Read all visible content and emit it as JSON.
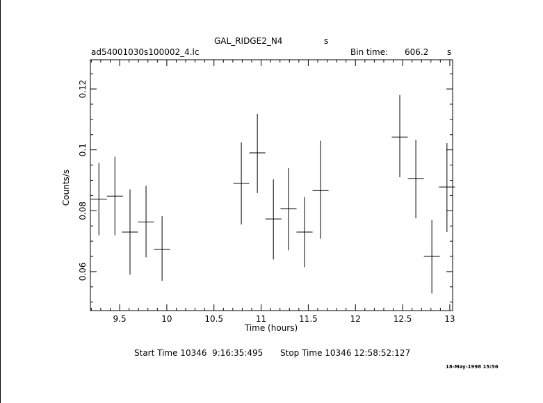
{
  "header": {
    "source": "GAL_RIDGE2_N4",
    "source_suffix": "s",
    "file": "ad54001030s100002_4.lc",
    "bin_label": "Bin time:",
    "bin_value": "606.2",
    "bin_unit": "s"
  },
  "footer": {
    "start": "Start Time 10346  9:16:35:495",
    "stop": "Stop Time 10346 12:58:52:127",
    "date_stamp": "18-May-1998 15:56"
  },
  "chart_data": {
    "type": "scatter",
    "title": "GAL_RIDGE2_N4",
    "xlabel": "Time (hours)",
    "ylabel": "Counts/s",
    "xlim": [
      9.19,
      13.03
    ],
    "ylim": [
      0.0472,
      0.1296
    ],
    "xticks_major": [
      9.5,
      10,
      10.5,
      11,
      11.5,
      12,
      12.5,
      13
    ],
    "xtick_labels": [
      "9.5",
      "10",
      "10.5",
      "11",
      "11.5",
      "12",
      "12.5",
      "13"
    ],
    "yticks_major": [
      0.06,
      0.08,
      0.1,
      0.12
    ],
    "ytick_labels": [
      "0.06",
      "0.08",
      "0.1",
      "0.12"
    ],
    "grid": false,
    "points": [
      {
        "x": 9.28,
        "y": 0.0838,
        "xerr": 0.085,
        "ylo": 0.072,
        "yhi": 0.0957
      },
      {
        "x": 9.45,
        "y": 0.0848,
        "xerr": 0.085,
        "ylo": 0.072,
        "yhi": 0.0977
      },
      {
        "x": 9.61,
        "y": 0.073,
        "xerr": 0.085,
        "ylo": 0.059,
        "yhi": 0.087
      },
      {
        "x": 9.78,
        "y": 0.0763,
        "xerr": 0.085,
        "ylo": 0.0647,
        "yhi": 0.0882
      },
      {
        "x": 9.95,
        "y": 0.0673,
        "xerr": 0.085,
        "ylo": 0.057,
        "yhi": 0.0782
      },
      {
        "x": 10.79,
        "y": 0.089,
        "xerr": 0.085,
        "ylo": 0.0755,
        "yhi": 0.1025
      },
      {
        "x": 10.96,
        "y": 0.099,
        "xerr": 0.085,
        "ylo": 0.0858,
        "yhi": 0.1118
      },
      {
        "x": 11.13,
        "y": 0.0773,
        "xerr": 0.085,
        "ylo": 0.064,
        "yhi": 0.0903
      },
      {
        "x": 11.29,
        "y": 0.0806,
        "xerr": 0.085,
        "ylo": 0.067,
        "yhi": 0.094
      },
      {
        "x": 11.46,
        "y": 0.073,
        "xerr": 0.085,
        "ylo": 0.0615,
        "yhi": 0.0845
      },
      {
        "x": 11.63,
        "y": 0.0866,
        "xerr": 0.085,
        "ylo": 0.0708,
        "yhi": 0.103
      },
      {
        "x": 12.47,
        "y": 0.1042,
        "xerr": 0.085,
        "ylo": 0.091,
        "yhi": 0.118
      },
      {
        "x": 12.64,
        "y": 0.0906,
        "xerr": 0.085,
        "ylo": 0.0775,
        "yhi": 0.1033
      },
      {
        "x": 12.81,
        "y": 0.065,
        "xerr": 0.085,
        "ylo": 0.0528,
        "yhi": 0.077
      },
      {
        "x": 12.97,
        "y": 0.0878,
        "xerr": 0.085,
        "ylo": 0.073,
        "yhi": 0.1022
      }
    ]
  }
}
